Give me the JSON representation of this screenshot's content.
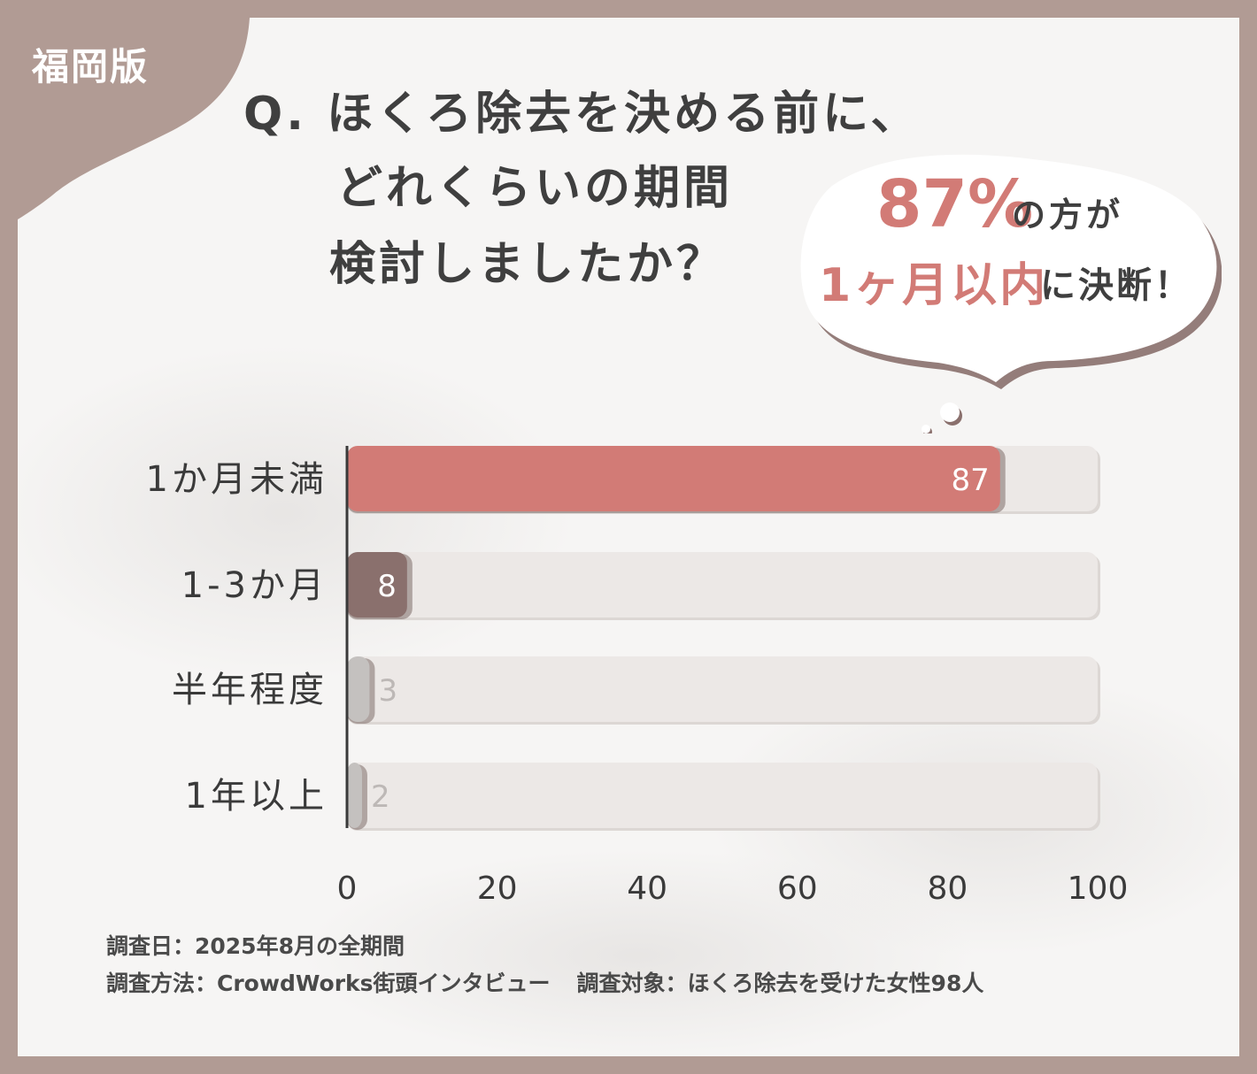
{
  "edition_badge": "福岡版",
  "question": {
    "line1": "Q. ほくろ除去を決める前に、",
    "line2": "どれくらいの期間",
    "line3": "検討しましたか？"
  },
  "callout": {
    "percent": "87%",
    "after_percent": "の方が",
    "highlight": "1ヶ月以内",
    "after_highlight": "に決断！"
  },
  "colors": {
    "background_frame": "#b19b94",
    "card": "#f6f5f4",
    "accent_red": "#d27b76",
    "accent_brown": "#8a706d",
    "gray_bar": "#c4c1bf",
    "track": "#ece8e6"
  },
  "chart_data": {
    "type": "bar",
    "orientation": "horizontal",
    "categories": [
      "1か月未満",
      "1-3か月",
      "半年程度",
      "1年以上"
    ],
    "values": [
      87,
      8,
      3,
      2
    ],
    "value_labels": [
      "87",
      "8",
      "3",
      "2"
    ],
    "bar_colors": [
      "#d27b76",
      "#8a706d",
      "#c4c1bf",
      "#c4c1bf"
    ],
    "value_label_colors": [
      "#ffffff",
      "#ffffff",
      "#bdb8b6",
      "#bdb8b6"
    ],
    "xlim": [
      0,
      100
    ],
    "xticks": [
      "0",
      "20",
      "40",
      "60",
      "80",
      "100"
    ],
    "grid": false,
    "legend": "none"
  },
  "footer": {
    "date": "調査日：2025年8月の全期間",
    "method": "調査方法：CrowdWorks街頭インタビュー",
    "target": "調査対象：ほくろ除去を受けた女性98人"
  }
}
